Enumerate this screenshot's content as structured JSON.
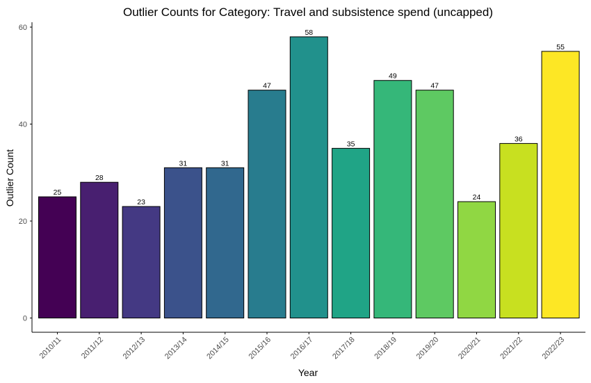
{
  "chart_data": {
    "type": "bar",
    "title": "Outlier Counts for Category: Travel and subsistence spend (uncapped)",
    "xlabel": "Year",
    "ylabel": "Outlier Count",
    "categories": [
      "2010/11",
      "2011/12",
      "2012/13",
      "2013/14",
      "2014/15",
      "2015/16",
      "2016/17",
      "2017/18",
      "2018/19",
      "2019/20",
      "2020/21",
      "2021/22",
      "2022/23"
    ],
    "values": [
      25,
      28,
      23,
      31,
      31,
      47,
      58,
      35,
      49,
      47,
      24,
      36,
      55
    ],
    "colors": [
      "#440154",
      "#481f70",
      "#443983",
      "#3b528b",
      "#31688e",
      "#287c8e",
      "#21918c",
      "#20a486",
      "#35b779",
      "#5ec962",
      "#90d743",
      "#c8e020",
      "#fde725"
    ],
    "ylim": [
      0,
      60
    ],
    "yticks": [
      0,
      20,
      40,
      60
    ],
    "grid": false,
    "legend": "none"
  }
}
